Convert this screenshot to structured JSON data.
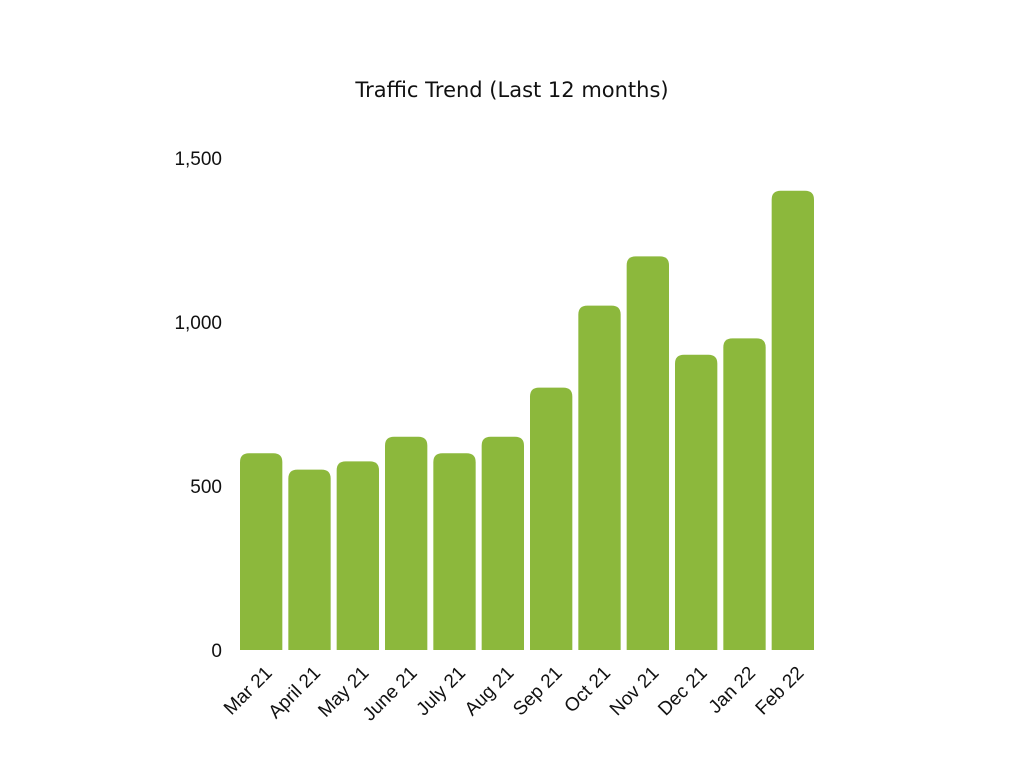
{
  "chart_data": {
    "type": "bar",
    "title": "Traffic Trend (Last 12 months)",
    "xlabel": "",
    "ylabel": "",
    "categories": [
      "Mar 21",
      "April 21",
      "May 21",
      "June 21",
      "July 21",
      "Aug 21",
      "Sep 21",
      "Oct 21",
      "Nov 21",
      "Dec 21",
      "Jan 22",
      "Feb 22"
    ],
    "values": [
      600,
      550,
      575,
      650,
      600,
      650,
      800,
      1050,
      1200,
      900,
      950,
      1400
    ],
    "ylim": [
      0,
      1500
    ],
    "yticks": [
      0,
      500,
      1000,
      1500
    ],
    "ytick_labels": [
      "0",
      "500",
      "1,000",
      "1,500"
    ],
    "grid": false,
    "legend": "none",
    "bar_color": "#8cb83c"
  }
}
